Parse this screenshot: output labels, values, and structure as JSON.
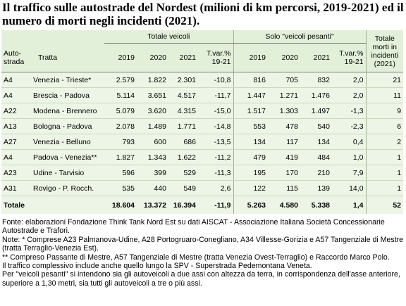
{
  "title": "Il traffico sulle autostrade del Nordest (milioni di km percorsi, 2019-2021) ed il numero di morti negli incidenti (2021).",
  "table": {
    "group_headers": [
      "Totale veicoli",
      "Solo \"veicoli pesanti\""
    ],
    "last_header": [
      "Totale",
      "morti in",
      "incidenti",
      "(2021)"
    ],
    "columns": [
      [
        "Auto-",
        "strada"
      ],
      [
        "Tratta"
      ],
      [
        "2019"
      ],
      [
        "2020"
      ],
      [
        "2021"
      ],
      [
        "T.var.%",
        "19-21"
      ],
      [
        "2019"
      ],
      [
        "2020"
      ],
      [
        "2021"
      ],
      [
        "T.var.%",
        "19-21"
      ]
    ],
    "rows": [
      [
        "A4",
        "Venezia - Trieste*",
        "2.579",
        "1.822",
        "2.301",
        "-10,8",
        "816",
        "705",
        "832",
        "2,0",
        "21"
      ],
      [
        "A4",
        "Brescia - Padova",
        "5.114",
        "3.651",
        "4.517",
        "-11,7",
        "1.447",
        "1.271",
        "1.476",
        "2,0",
        "11"
      ],
      [
        "A22",
        "Modena - Brennero",
        "5.079",
        "3.620",
        "4.315",
        "-15,0",
        "1.517",
        "1.303",
        "1.497",
        "-1,3",
        "9"
      ],
      [
        "A13",
        "Bologna - Padova",
        "2.078",
        "1.489",
        "1.771",
        "-14,8",
        "553",
        "478",
        "540",
        "-2,3",
        "6"
      ],
      [
        "A27",
        "Venezia - Belluno",
        "793",
        "600",
        "686",
        "-13,5",
        "134",
        "117",
        "134",
        "0,4",
        "2"
      ],
      [
        "A4",
        "Padova - Venezia**",
        "1.827",
        "1.343",
        "1.622",
        "-11,2",
        "479",
        "419",
        "484",
        "1,0",
        "1"
      ],
      [
        "A23",
        "Udine - Tarvisio",
        "596",
        "399",
        "529",
        "-11,3",
        "195",
        "170",
        "210",
        "7,9",
        "1"
      ],
      [
        "A31",
        "Rovigo - P. Rocch.",
        "535",
        "440",
        "549",
        "2,6",
        "122",
        "115",
        "139",
        "14,0",
        "1"
      ]
    ],
    "total": [
      "Totale",
      "18.604",
      "13.372",
      "16.394",
      "-11,9",
      "5.263",
      "4.580",
      "5.338",
      "1,4",
      "52"
    ]
  },
  "notes": [
    "Fonte: elaborazioni Fondazione Think Tank Nord Est su dati AISCAT - Associazione Italiana Società Concessionarie Autostrade e Trafori.",
    "Note: * Comprese A23 Palmanova-Udine, A28 Portogruaro-Conegliano, A34 Villesse-Gorizia e A57 Tangenziale di Mestre (tratta Terraglio-Venezia Est).",
    "** Compreso Passante di Mestre, A57 Tangenziale di Mestre (tratta Venezia Ovest-Terraglio) e Raccordo Marco Polo.",
    "Il traffico complessivo include anche quello lungo la SPV - Superstrada Pedemontana Veneta.",
    "Per \"veicoli pesanti\" si intendono sia gli autoveicoli a due assi con altezza da terra, in corrispondenza dell'asse anteriore, superiore a 1,30 metri, sia tutti gli autoveicoli a tre o più assi."
  ]
}
